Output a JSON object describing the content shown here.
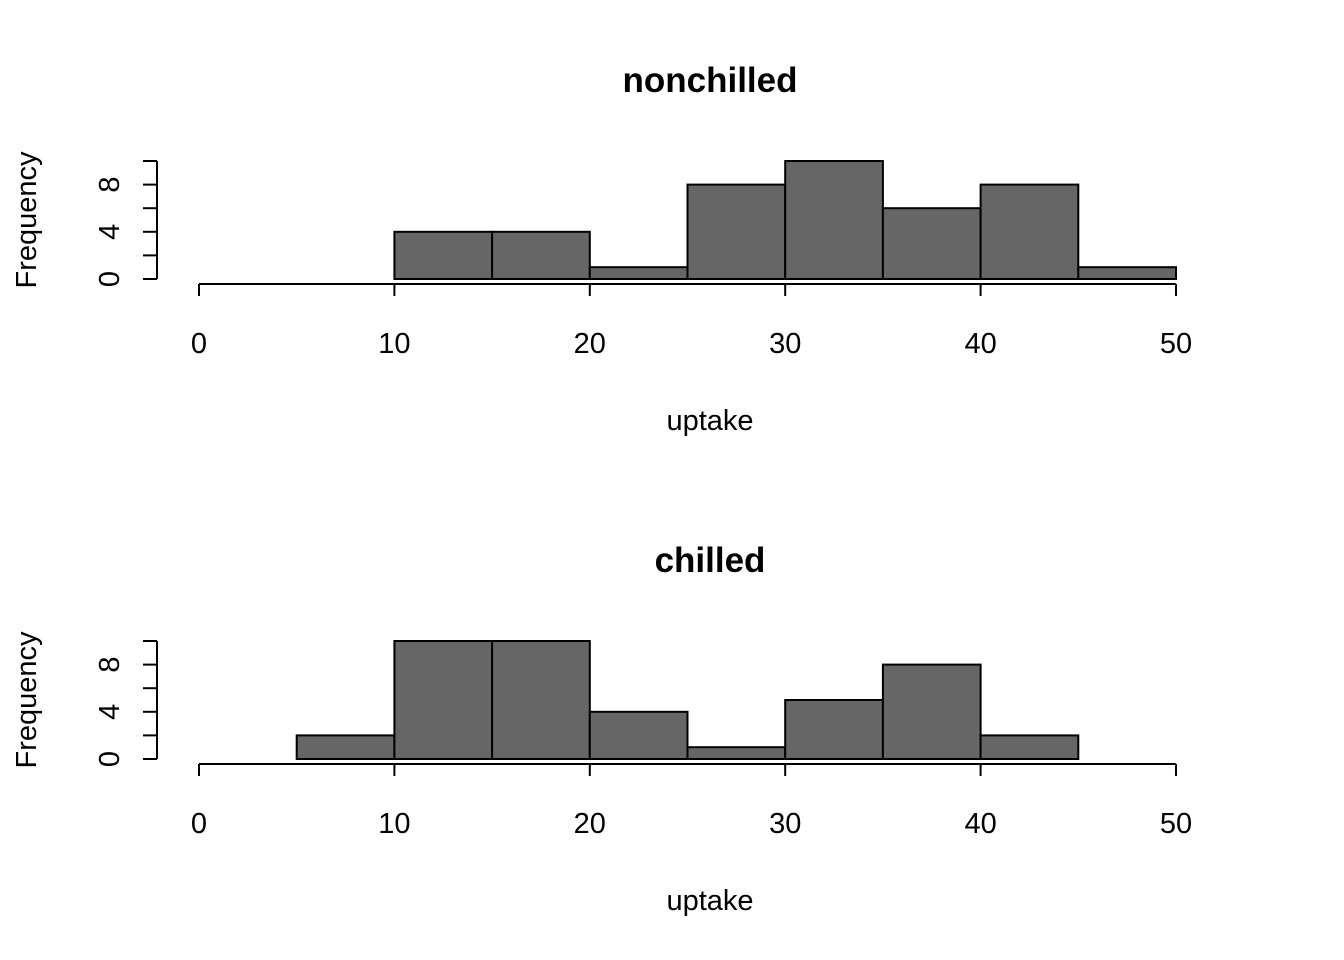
{
  "chart_data": [
    {
      "type": "bar",
      "title": "nonchilled",
      "xlabel": "uptake",
      "ylabel": "Frequency",
      "bin_edges": [
        10,
        15,
        20,
        25,
        30,
        35,
        40,
        45,
        50
      ],
      "values": [
        4,
        4,
        1,
        8,
        10,
        6,
        8,
        1
      ],
      "xlim": [
        0,
        50
      ],
      "ylim": [
        0,
        10
      ],
      "x_ticks": [
        0,
        10,
        20,
        30,
        40,
        50
      ],
      "y_ticks": [
        0,
        2,
        4,
        6,
        8,
        10
      ],
      "y_tick_labels": [
        "0",
        "",
        "4",
        "",
        "8",
        ""
      ],
      "bar_color": "#666666",
      "grid": false
    },
    {
      "type": "bar",
      "title": "chilled",
      "xlabel": "uptake",
      "ylabel": "Frequency",
      "bin_edges": [
        5,
        10,
        15,
        20,
        25,
        30,
        35,
        40,
        45
      ],
      "values": [
        2,
        10,
        10,
        4,
        1,
        5,
        8,
        2
      ],
      "xlim": [
        0,
        50
      ],
      "ylim": [
        0,
        10
      ],
      "x_ticks": [
        0,
        10,
        20,
        30,
        40,
        50
      ],
      "y_ticks": [
        0,
        2,
        4,
        6,
        8,
        10
      ],
      "y_tick_labels": [
        "0",
        "",
        "4",
        "",
        "8",
        ""
      ],
      "bar_color": "#666666",
      "grid": false
    }
  ]
}
